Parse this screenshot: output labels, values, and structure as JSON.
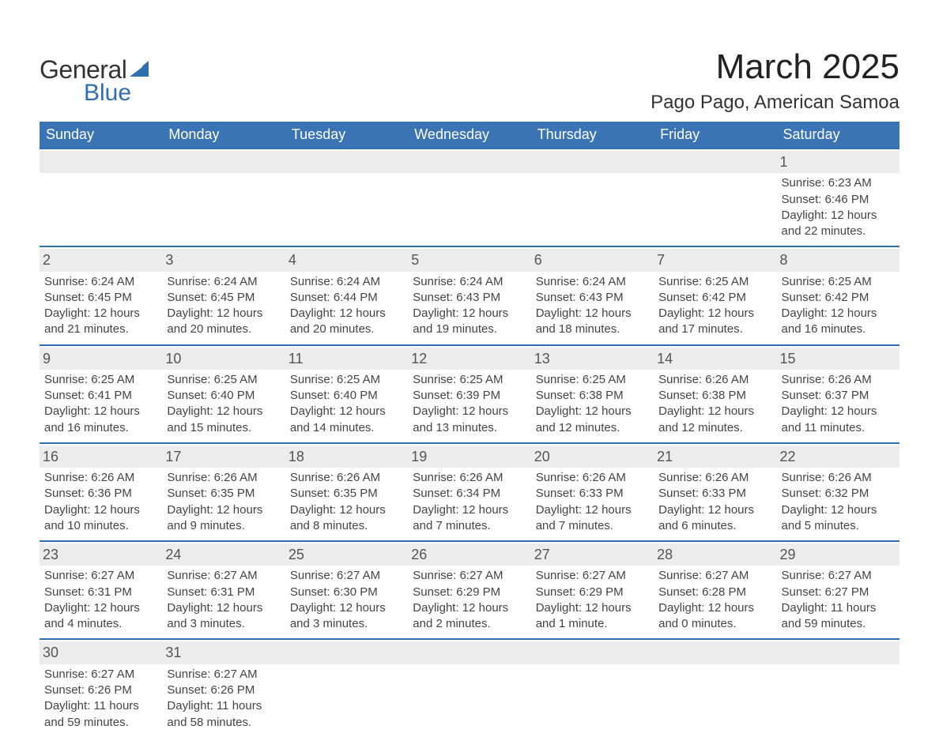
{
  "brand": {
    "line1": "General",
    "line2": "Blue"
  },
  "title": "March 2025",
  "location": "Pago Pago, American Samoa",
  "colors": {
    "header_bg": "#3a74b4",
    "week_border": "#2f6eb0",
    "daynum_bg": "#ececec",
    "text": "#444444",
    "brand_blue": "#2f6eb0"
  },
  "day_labels": [
    "Sunday",
    "Monday",
    "Tuesday",
    "Wednesday",
    "Thursday",
    "Friday",
    "Saturday"
  ],
  "weeks": [
    [
      {
        "n": "",
        "l": []
      },
      {
        "n": "",
        "l": []
      },
      {
        "n": "",
        "l": []
      },
      {
        "n": "",
        "l": []
      },
      {
        "n": "",
        "l": []
      },
      {
        "n": "",
        "l": []
      },
      {
        "n": "1",
        "l": [
          "Sunrise: 6:23 AM",
          "Sunset: 6:46 PM",
          "Daylight: 12 hours",
          "and 22 minutes."
        ]
      }
    ],
    [
      {
        "n": "2",
        "l": [
          "Sunrise: 6:24 AM",
          "Sunset: 6:45 PM",
          "Daylight: 12 hours",
          "and 21 minutes."
        ]
      },
      {
        "n": "3",
        "l": [
          "Sunrise: 6:24 AM",
          "Sunset: 6:45 PM",
          "Daylight: 12 hours",
          "and 20 minutes."
        ]
      },
      {
        "n": "4",
        "l": [
          "Sunrise: 6:24 AM",
          "Sunset: 6:44 PM",
          "Daylight: 12 hours",
          "and 20 minutes."
        ]
      },
      {
        "n": "5",
        "l": [
          "Sunrise: 6:24 AM",
          "Sunset: 6:43 PM",
          "Daylight: 12 hours",
          "and 19 minutes."
        ]
      },
      {
        "n": "6",
        "l": [
          "Sunrise: 6:24 AM",
          "Sunset: 6:43 PM",
          "Daylight: 12 hours",
          "and 18 minutes."
        ]
      },
      {
        "n": "7",
        "l": [
          "Sunrise: 6:25 AM",
          "Sunset: 6:42 PM",
          "Daylight: 12 hours",
          "and 17 minutes."
        ]
      },
      {
        "n": "8",
        "l": [
          "Sunrise: 6:25 AM",
          "Sunset: 6:42 PM",
          "Daylight: 12 hours",
          "and 16 minutes."
        ]
      }
    ],
    [
      {
        "n": "9",
        "l": [
          "Sunrise: 6:25 AM",
          "Sunset: 6:41 PM",
          "Daylight: 12 hours",
          "and 16 minutes."
        ]
      },
      {
        "n": "10",
        "l": [
          "Sunrise: 6:25 AM",
          "Sunset: 6:40 PM",
          "Daylight: 12 hours",
          "and 15 minutes."
        ]
      },
      {
        "n": "11",
        "l": [
          "Sunrise: 6:25 AM",
          "Sunset: 6:40 PM",
          "Daylight: 12 hours",
          "and 14 minutes."
        ]
      },
      {
        "n": "12",
        "l": [
          "Sunrise: 6:25 AM",
          "Sunset: 6:39 PM",
          "Daylight: 12 hours",
          "and 13 minutes."
        ]
      },
      {
        "n": "13",
        "l": [
          "Sunrise: 6:25 AM",
          "Sunset: 6:38 PM",
          "Daylight: 12 hours",
          "and 12 minutes."
        ]
      },
      {
        "n": "14",
        "l": [
          "Sunrise: 6:26 AM",
          "Sunset: 6:38 PM",
          "Daylight: 12 hours",
          "and 12 minutes."
        ]
      },
      {
        "n": "15",
        "l": [
          "Sunrise: 6:26 AM",
          "Sunset: 6:37 PM",
          "Daylight: 12 hours",
          "and 11 minutes."
        ]
      }
    ],
    [
      {
        "n": "16",
        "l": [
          "Sunrise: 6:26 AM",
          "Sunset: 6:36 PM",
          "Daylight: 12 hours",
          "and 10 minutes."
        ]
      },
      {
        "n": "17",
        "l": [
          "Sunrise: 6:26 AM",
          "Sunset: 6:35 PM",
          "Daylight: 12 hours",
          "and 9 minutes."
        ]
      },
      {
        "n": "18",
        "l": [
          "Sunrise: 6:26 AM",
          "Sunset: 6:35 PM",
          "Daylight: 12 hours",
          "and 8 minutes."
        ]
      },
      {
        "n": "19",
        "l": [
          "Sunrise: 6:26 AM",
          "Sunset: 6:34 PM",
          "Daylight: 12 hours",
          "and 7 minutes."
        ]
      },
      {
        "n": "20",
        "l": [
          "Sunrise: 6:26 AM",
          "Sunset: 6:33 PM",
          "Daylight: 12 hours",
          "and 7 minutes."
        ]
      },
      {
        "n": "21",
        "l": [
          "Sunrise: 6:26 AM",
          "Sunset: 6:33 PM",
          "Daylight: 12 hours",
          "and 6 minutes."
        ]
      },
      {
        "n": "22",
        "l": [
          "Sunrise: 6:26 AM",
          "Sunset: 6:32 PM",
          "Daylight: 12 hours",
          "and 5 minutes."
        ]
      }
    ],
    [
      {
        "n": "23",
        "l": [
          "Sunrise: 6:27 AM",
          "Sunset: 6:31 PM",
          "Daylight: 12 hours",
          "and 4 minutes."
        ]
      },
      {
        "n": "24",
        "l": [
          "Sunrise: 6:27 AM",
          "Sunset: 6:31 PM",
          "Daylight: 12 hours",
          "and 3 minutes."
        ]
      },
      {
        "n": "25",
        "l": [
          "Sunrise: 6:27 AM",
          "Sunset: 6:30 PM",
          "Daylight: 12 hours",
          "and 3 minutes."
        ]
      },
      {
        "n": "26",
        "l": [
          "Sunrise: 6:27 AM",
          "Sunset: 6:29 PM",
          "Daylight: 12 hours",
          "and 2 minutes."
        ]
      },
      {
        "n": "27",
        "l": [
          "Sunrise: 6:27 AM",
          "Sunset: 6:29 PM",
          "Daylight: 12 hours",
          "and 1 minute."
        ]
      },
      {
        "n": "28",
        "l": [
          "Sunrise: 6:27 AM",
          "Sunset: 6:28 PM",
          "Daylight: 12 hours",
          "and 0 minutes."
        ]
      },
      {
        "n": "29",
        "l": [
          "Sunrise: 6:27 AM",
          "Sunset: 6:27 PM",
          "Daylight: 11 hours",
          "and 59 minutes."
        ]
      }
    ],
    [
      {
        "n": "30",
        "l": [
          "Sunrise: 6:27 AM",
          "Sunset: 6:26 PM",
          "Daylight: 11 hours",
          "and 59 minutes."
        ]
      },
      {
        "n": "31",
        "l": [
          "Sunrise: 6:27 AM",
          "Sunset: 6:26 PM",
          "Daylight: 11 hours",
          "and 58 minutes."
        ]
      },
      {
        "n": "",
        "l": []
      },
      {
        "n": "",
        "l": []
      },
      {
        "n": "",
        "l": []
      },
      {
        "n": "",
        "l": []
      },
      {
        "n": "",
        "l": []
      }
    ]
  ]
}
